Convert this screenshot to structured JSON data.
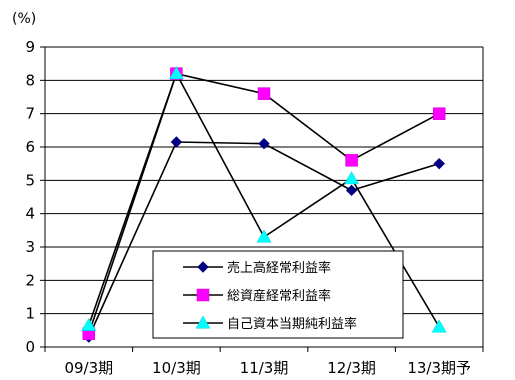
{
  "chart_data": {
    "type": "line",
    "unit": "(%)",
    "categories": [
      "09/3期",
      "10/3期",
      "11/3期",
      "12/3期",
      "13/3期予"
    ],
    "ylim": [
      0,
      9
    ],
    "yticks": [
      0,
      1,
      2,
      3,
      4,
      5,
      6,
      7,
      8,
      9
    ],
    "grid": true,
    "legend_position": "bottom-center",
    "series": [
      {
        "name": "売上高経常利益率",
        "marker": "diamond",
        "marker_color": "#000080",
        "line_color": "#000000",
        "values": [
          0.3,
          6.15,
          6.1,
          4.7,
          5.5
        ]
      },
      {
        "name": "総資産経常利益率",
        "marker": "square",
        "marker_color": "#FF00FF",
        "line_color": "#000000",
        "values": [
          0.4,
          8.2,
          7.6,
          5.6,
          7.0
        ]
      },
      {
        "name": "自己資本当期純利益率",
        "marker": "triangle",
        "marker_color": "#00FFFF",
        "line_color": "#000000",
        "values": [
          0.65,
          8.2,
          3.3,
          5.05,
          0.6
        ]
      }
    ]
  }
}
